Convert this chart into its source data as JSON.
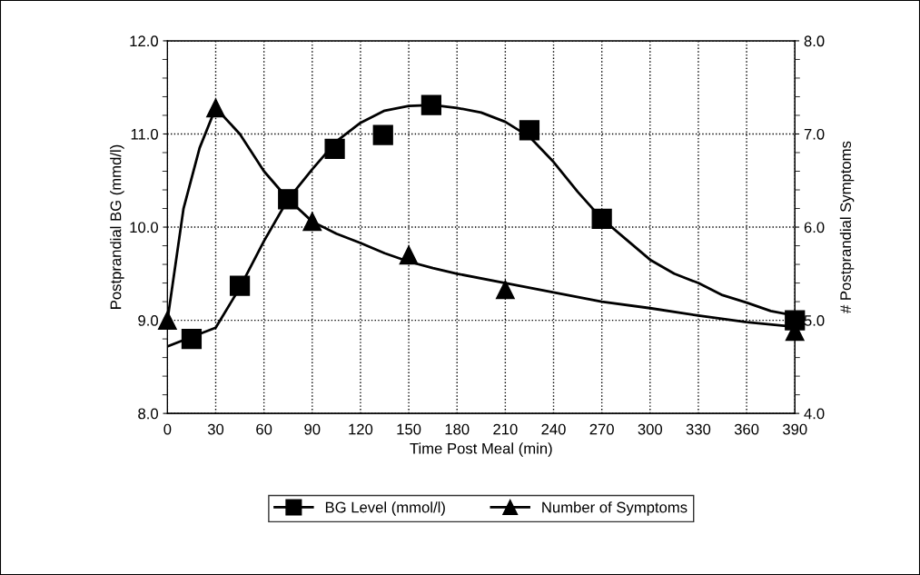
{
  "chart_data": {
    "type": "line",
    "xlabel": "Time Post Meal (min)",
    "ylabel": "Postprandial BG (mmd/l)",
    "y2label": "# Postprandial Symptoms",
    "xlim": [
      0,
      390
    ],
    "xticks": [
      0,
      30,
      60,
      90,
      120,
      150,
      180,
      210,
      240,
      270,
      300,
      330,
      360,
      390
    ],
    "ylim": [
      8.0,
      12.0
    ],
    "yticks": [
      {
        "value": 8,
        "label": "8.0"
      },
      {
        "value": 9,
        "label": "9.0"
      },
      {
        "value": 10,
        "label": "10.0"
      },
      {
        "value": 11,
        "label": "11.0"
      },
      {
        "value": 12,
        "label": "12.0"
      }
    ],
    "y2lim": [
      4.0,
      8.0
    ],
    "y2ticks": [
      {
        "value": 4,
        "label": "4.0"
      },
      {
        "value": 5,
        "label": "5.0"
      },
      {
        "value": 6,
        "label": "6.0"
      },
      {
        "value": 7,
        "label": "7.0"
      },
      {
        "value": 8,
        "label": "8.0"
      }
    ],
    "grid": true,
    "legend": "bottom",
    "series": [
      {
        "name": "BG Level (mmol/l)",
        "type": "scatter",
        "marker": "square",
        "color": "#000000",
        "x": [
          15,
          45,
          75,
          104,
          134,
          164,
          225,
          270,
          390
        ],
        "values": [
          8.8,
          9.37,
          10.3,
          10.84,
          10.99,
          11.31,
          11.04,
          10.09,
          9.0
        ]
      },
      {
        "name": "Number of Symptoms",
        "type": "scatter",
        "marker": "triangle",
        "axis": "y2",
        "color": "#000000",
        "x": [
          0,
          30,
          90,
          150,
          210,
          390
        ],
        "values": [
          5.0,
          7.28,
          6.06,
          5.7,
          5.33,
          4.88
        ]
      },
      {
        "marker": "none",
        "line_style": "solid",
        "color": "#000000",
        "x": [
          0,
          15,
          30,
          45,
          60,
          75,
          90,
          105,
          120,
          135,
          150,
          165,
          180,
          195,
          210,
          225,
          240,
          255,
          270,
          285,
          300,
          315,
          330,
          345,
          360,
          375,
          390
        ],
        "values": [
          8.72,
          8.82,
          8.92,
          9.35,
          9.85,
          10.3,
          10.62,
          10.92,
          11.12,
          11.25,
          11.3,
          11.31,
          11.28,
          11.23,
          11.13,
          10.97,
          10.7,
          10.38,
          10.09,
          9.87,
          9.65,
          9.5,
          9.4,
          9.27,
          9.19,
          9.1,
          9.05
        ]
      },
      {
        "marker": "none",
        "line_style": "solid",
        "axis": "y2",
        "color": "#000000",
        "x": [
          0,
          10,
          20,
          30,
          45,
          60,
          75,
          90,
          105,
          120,
          135,
          150,
          165,
          180,
          210,
          240,
          270,
          300,
          330,
          360,
          390
        ],
        "values": [
          5.0,
          6.2,
          6.85,
          7.28,
          7.0,
          6.6,
          6.3,
          6.06,
          5.93,
          5.83,
          5.72,
          5.63,
          5.56,
          5.5,
          5.4,
          5.3,
          5.2,
          5.13,
          5.05,
          4.98,
          4.93
        ]
      }
    ]
  }
}
